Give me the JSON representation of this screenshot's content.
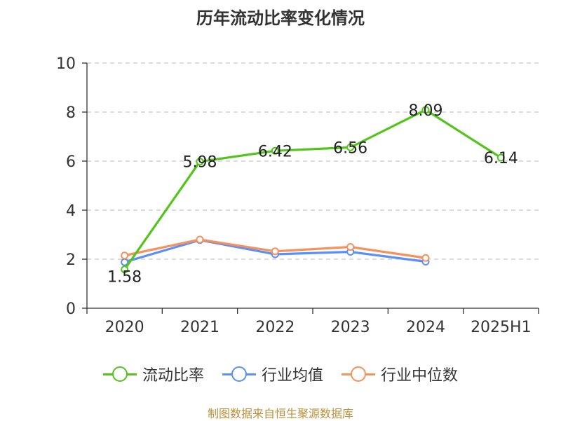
{
  "title": "历年流动比率变化情况",
  "footer": "制图数据来自恒生聚源数据库",
  "chart_data": {
    "type": "line",
    "title": "历年流动比率变化情况",
    "categories": [
      "2020",
      "2021",
      "2022",
      "2023",
      "2024",
      "2025H1"
    ],
    "ylim": [
      0,
      10
    ],
    "yticks": [
      0,
      2,
      4,
      6,
      8,
      10
    ],
    "grid": true,
    "legend_position": "bottom",
    "series": [
      {
        "name": "流动比率",
        "color": "#52c41a",
        "values": [
          1.58,
          5.98,
          6.42,
          6.56,
          8.09,
          6.14
        ],
        "labels": [
          "1.58",
          "5.98",
          "6.42",
          "6.56",
          "8.09",
          "6.14"
        ]
      },
      {
        "name": "行业均值",
        "color": "#5b8ff9",
        "values": [
          1.88,
          2.78,
          2.2,
          2.3,
          1.9,
          null
        ]
      },
      {
        "name": "行业中位数",
        "color": "#f6915c",
        "values": [
          2.15,
          2.8,
          2.32,
          2.5,
          2.05,
          null
        ]
      }
    ]
  }
}
